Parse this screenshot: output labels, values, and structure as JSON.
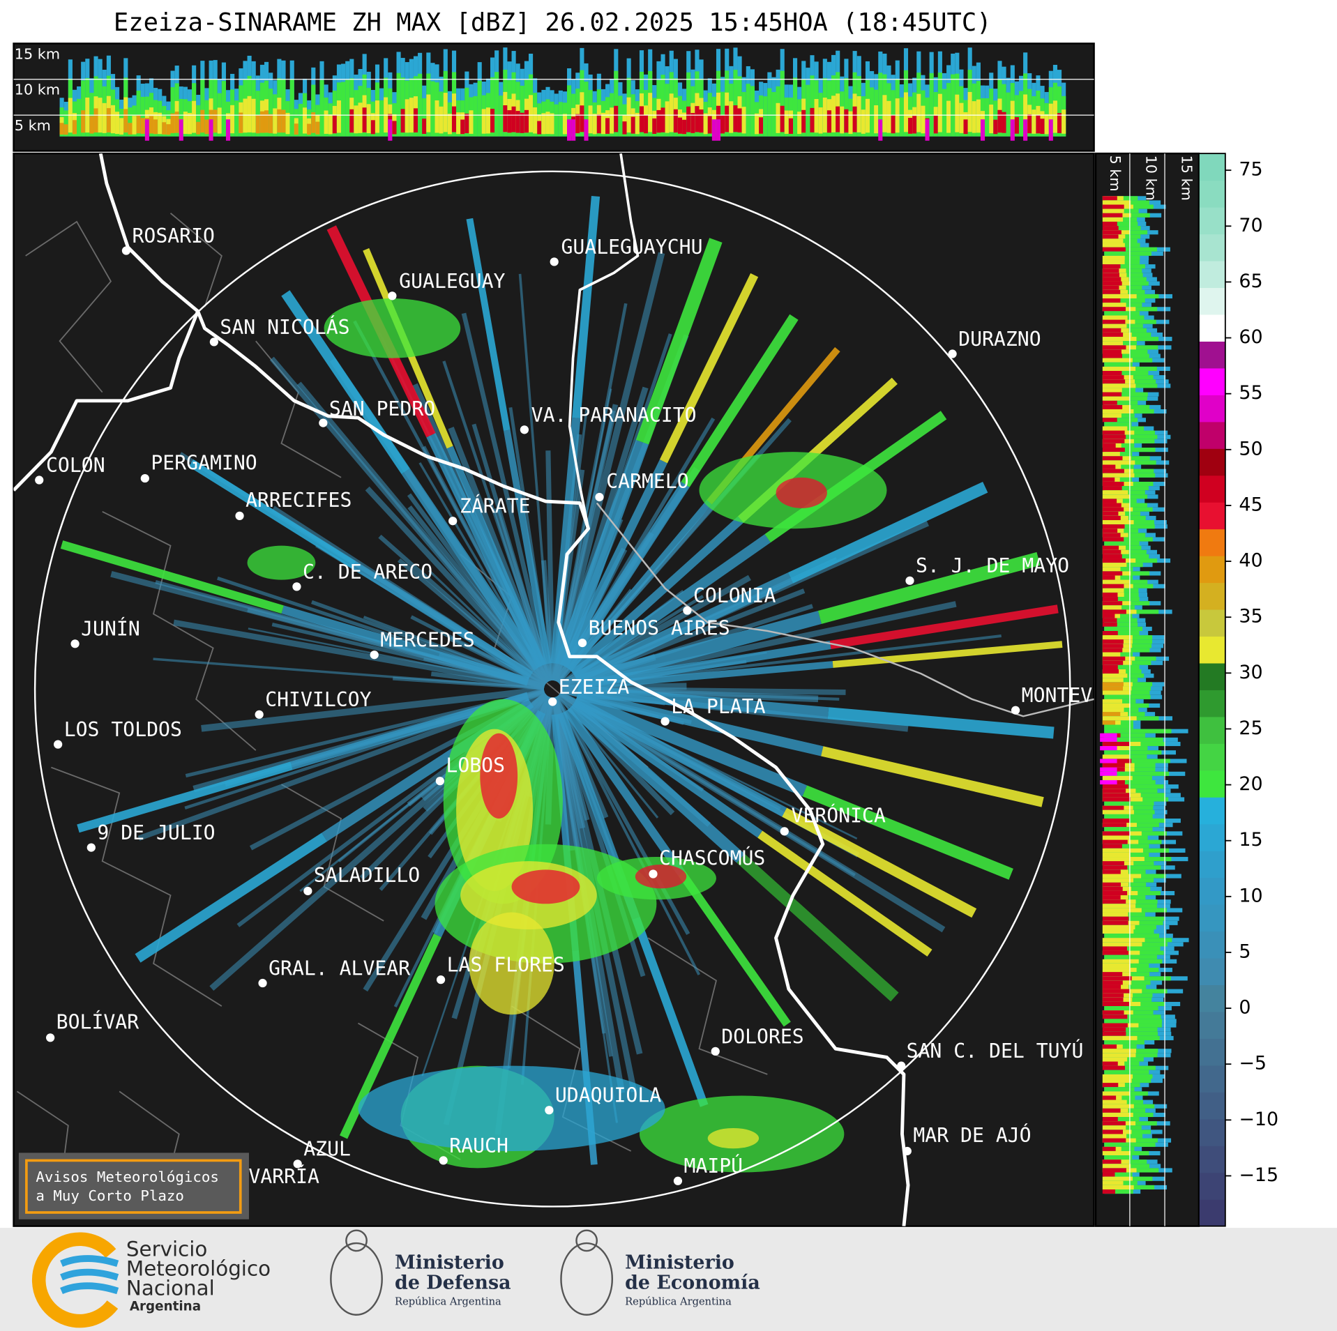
{
  "title": "Ezeiza-SINARAME ZH MAX [dBZ] 26.02.2025 15:45HOA (18:45UTC)",
  "cross_section_labels": [
    "15 km",
    "10 km",
    "5 km"
  ],
  "side_section_labels": [
    "5 km",
    "10 km",
    "15 km"
  ],
  "cities": [
    "ROSARIO",
    "GUALEGUAYCHU",
    "GUALEGUAY",
    "SAN NICOLÁS",
    "DURAZNO",
    "SAN PEDRO",
    "VA. PARANACITO",
    "COLON",
    "PERGAMINO",
    "CARMELO",
    "ARRECIFES",
    "ZÁRATE",
    "C. DE ARECO",
    "S. J. DE MAYO",
    "COLONIA",
    "JUNÍN",
    "BUENOS AIRES",
    "MERCEDES",
    "EZEIZA",
    "CHIVILCOY",
    "MONTEVIDEO",
    "LA PLATA",
    "LOS TOLDOS",
    "LOBOS",
    "VERÓNICA",
    "9 DE JULIO",
    "CHASCOMÚS",
    "SALADILLO",
    "GRAL. ALVEAR",
    "LAS FLORES",
    "DOLORES",
    "BOLÍVAR",
    "SAN C. DEL TUYÚ",
    "MAR DE AJÓ",
    "UDAQUIOLA",
    "AZUL",
    "RAUCH",
    "OLAVARRÍA",
    "MAIPÚ"
  ],
  "colorbar": {
    "lim": [
      -19.5,
      76.5
    ],
    "ticks": [
      75,
      70,
      65,
      60,
      55,
      50,
      45,
      40,
      35,
      30,
      25,
      20,
      15,
      10,
      5,
      0,
      {
        "value": -5,
        "label": "−5"
      },
      {
        "value": -10,
        "label": "−10"
      },
      {
        "value": -15,
        "label": "−15"
      }
    ],
    "colors": [
      "#3b3b6e",
      "#3d4474",
      "#3f4d7a",
      "#405680",
      "#415f86",
      "#42688c",
      "#437192",
      "#447a98",
      "#44839e",
      "#3f8bb0",
      "#3a90b8",
      "#3696c0",
      "#3399c6",
      "#2f9fcc",
      "#2ba7d4",
      "#26b0dc",
      "#3ee63e",
      "#44d444",
      "#3fc03f",
      "#2f9a2f",
      "#237a23",
      "#e8e830",
      "#c8c83c",
      "#d4b020",
      "#e09a10",
      "#f07a10",
      "#e81030",
      "#d00020",
      "#a00010",
      "#c0006a",
      "#e000c8",
      "#ff00ff",
      "#a01090",
      "#ffffff",
      "#dff5ee",
      "#c0ecde",
      "#a8e4d0",
      "#98e0c8",
      "#8adcc0",
      "#80d8bc"
    ]
  },
  "notice": [
    "Avisos Meteorológicos",
    "a Muy Corto Plazo"
  ],
  "logos": {
    "smn": [
      "Servicio",
      "Meteorológico",
      "Nacional",
      "Argentina"
    ],
    "defensa": [
      "Ministerio",
      "de Defensa",
      "República Argentina"
    ],
    "economia": [
      "Ministerio",
      "de Economía",
      "República Argentina"
    ]
  }
}
